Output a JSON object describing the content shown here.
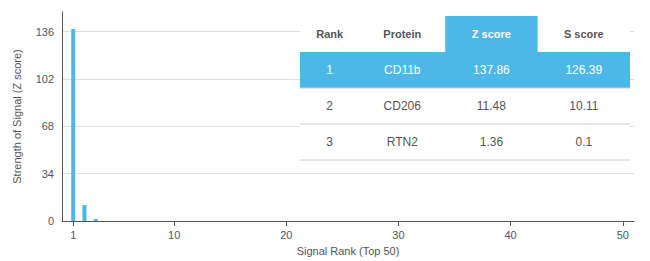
{
  "chart_data": {
    "type": "bar",
    "x": [
      1,
      2,
      3
    ],
    "values": [
      137.86,
      11.48,
      1.36
    ],
    "color": "#4db8e8",
    "xlabel": "Signal Rank (Top 50)",
    "ylabel": "Strength of Signal (Z score)",
    "xlim": [
      0,
      51
    ],
    "xticks": [
      1,
      10,
      20,
      30,
      40,
      50
    ],
    "ylim": [
      0,
      150
    ],
    "yticks": [
      0,
      34,
      68,
      102,
      136
    ],
    "grid": true,
    "table": {
      "columns": [
        "Rank",
        "Protein",
        "Z score",
        "S score"
      ],
      "rows": [
        [
          "1",
          "CD11b",
          "137.86",
          "126.39"
        ],
        [
          "2",
          "CD206",
          "11.48",
          "10.11"
        ],
        [
          "3",
          "RTN2",
          "1.36",
          "0.1"
        ]
      ]
    }
  }
}
